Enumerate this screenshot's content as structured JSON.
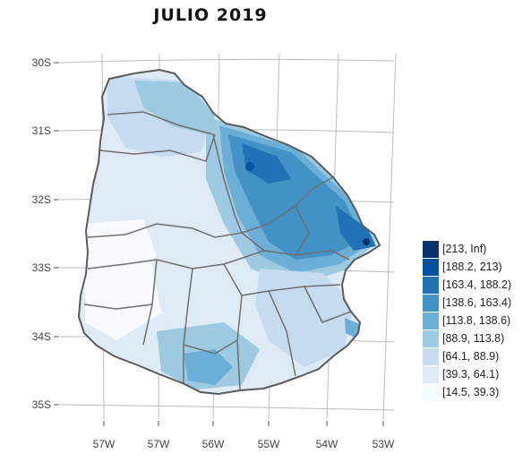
{
  "title": "JULIO  2019",
  "axes": {
    "lat_labels": [
      "30S",
      "31S",
      "32S",
      "33S",
      "34S",
      "35S"
    ],
    "lon_labels": [
      "57W",
      "57W",
      "56W",
      "55W",
      "54W",
      "53W"
    ]
  },
  "legend": {
    "items": [
      {
        "label": "[213, Inf)",
        "color": "#08306b"
      },
      {
        "label": "[188.2, 213)",
        "color": "#08519c"
      },
      {
        "label": "[163.4, 188.2)",
        "color": "#2171b5"
      },
      {
        "label": "[138.6, 163.4)",
        "color": "#4292c6"
      },
      {
        "label": "[113.8, 138.6)",
        "color": "#6baed6"
      },
      {
        "label": "[88.9, 113.8)",
        "color": "#9ecae1"
      },
      {
        "label": "[64.1, 88.9)",
        "color": "#c6dbef"
      },
      {
        "label": "[39.3, 64.1)",
        "color": "#deebf7"
      },
      {
        "label": "[14.5, 39.3)",
        "color": "#f7fbff"
      }
    ]
  }
}
